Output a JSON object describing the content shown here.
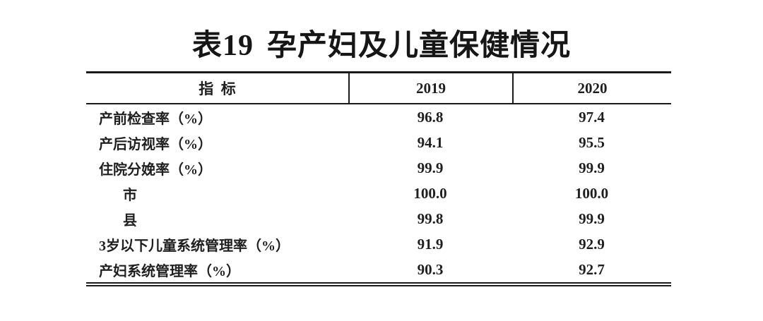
{
  "title": {
    "number": "表19",
    "text": "孕产妇及儿童保健情况"
  },
  "table": {
    "headers": {
      "indicator": "指  标",
      "y2019": "2019",
      "y2020": "2020"
    },
    "rows": [
      {
        "label": "产前检查率（%）",
        "y2019": "96.8",
        "y2020": "97.4"
      },
      {
        "label": "产后访视率（%）",
        "y2019": "94.1",
        "y2020": "95.5"
      },
      {
        "label": "住院分娩率（%）",
        "y2019": "99.9",
        "y2020": "99.9"
      },
      {
        "label": "市",
        "y2019": "100.0",
        "y2020": "100.0"
      },
      {
        "label": "县",
        "y2019": "99.8",
        "y2020": "99.9"
      },
      {
        "label": "3岁以下儿童系统管理率（%）",
        "y2019": "91.9",
        "y2020": "92.9"
      },
      {
        "label": "产妇系统管理率（%）",
        "y2019": "90.3",
        "y2020": "92.7"
      }
    ]
  },
  "colors": {
    "rule": "#1a1a1a",
    "text": "#1f1f1f",
    "background": "#ffffff"
  },
  "chart_data": {
    "type": "table",
    "title": "表19 孕产妇及儿童保健情况",
    "categories": [
      "产前检查率（%）",
      "产后访视率（%）",
      "住院分娩率（%）",
      "市",
      "县",
      "3岁以下儿童系统管理率（%）",
      "产妇系统管理率（%）"
    ],
    "series": [
      {
        "name": "2019",
        "values": [
          96.8,
          94.1,
          99.9,
          100.0,
          99.8,
          91.9,
          90.3
        ]
      },
      {
        "name": "2020",
        "values": [
          97.4,
          95.5,
          99.9,
          100.0,
          99.9,
          92.9,
          92.7
        ]
      }
    ]
  }
}
